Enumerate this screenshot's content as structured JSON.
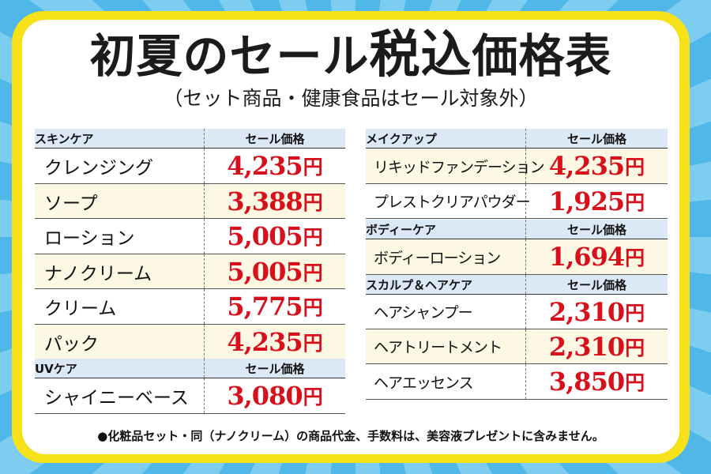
{
  "title": {
    "main": "初夏のセール",
    "emph": "税込",
    "tail": "価格表"
  },
  "subtitle": "（セット商品・健康食品はセール対象外）",
  "currency": "円",
  "colors": {
    "price": "#d8101c",
    "header_bg": "#dbe9f7",
    "alt_row_bg": "#fdf8e4",
    "frame": "#f7e21a",
    "background": "#4fb8e8"
  },
  "skincare": {
    "header": "スキンケア",
    "price_header": "セール価格",
    "items": [
      {
        "name": "クレンジング",
        "price": "4,235"
      },
      {
        "name": "ソープ",
        "price": "3,388"
      },
      {
        "name": "ローション",
        "price": "5,005"
      },
      {
        "name": "ナノクリーム",
        "price": "5,005"
      },
      {
        "name": "クリーム",
        "price": "5,775"
      },
      {
        "name": "パック",
        "price": "4,235"
      }
    ]
  },
  "uvcare": {
    "header": "UVケア",
    "price_header": "セール価格",
    "items": [
      {
        "name": "シャイニーベース",
        "price": "3,080"
      }
    ]
  },
  "makeup": {
    "header": "メイクアップ",
    "price_header": "セール価格",
    "items": [
      {
        "name": "リキッドファンデーション",
        "price": "4,235"
      },
      {
        "name": "プレストクリアパウダー",
        "price": "1,925"
      }
    ]
  },
  "bodycare": {
    "header": "ボディーケア",
    "price_header": "セール価格",
    "items": [
      {
        "name": "ボディーローション",
        "price": "1,694"
      }
    ]
  },
  "scalpcare": {
    "header": "スカルプ＆ヘアケア",
    "price_header": "セール価格",
    "items": [
      {
        "name": "ヘアシャンプー",
        "price": "2,310"
      },
      {
        "name": "ヘアトリートメント",
        "price": "2,310"
      },
      {
        "name": "ヘアエッセンス",
        "price": "3,850"
      }
    ]
  },
  "note": "●化粧品セット・同（ナノクリーム）の商品代金、手数料は、美容液プレゼントに含みません。"
}
